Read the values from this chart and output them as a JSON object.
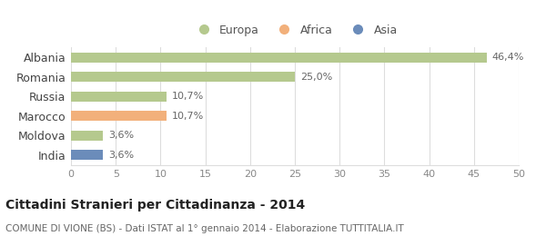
{
  "categories": [
    "Albania",
    "Romania",
    "Russia",
    "Marocco",
    "Moldova",
    "India"
  ],
  "values": [
    46.4,
    25.0,
    10.7,
    10.7,
    3.6,
    3.6
  ],
  "labels": [
    "46,4%",
    "25,0%",
    "10,7%",
    "10,7%",
    "3,6%",
    "3,6%"
  ],
  "bar_colors": [
    "#b5c98e",
    "#b5c98e",
    "#b5c98e",
    "#f2b07b",
    "#b5c98e",
    "#6b8cba"
  ],
  "legend_items": [
    {
      "label": "Europa",
      "color": "#b5c98e"
    },
    {
      "label": "Africa",
      "color": "#f2b07b"
    },
    {
      "label": "Asia",
      "color": "#6b8cba"
    }
  ],
  "xlim": [
    0,
    50
  ],
  "xticks": [
    0,
    5,
    10,
    15,
    20,
    25,
    30,
    35,
    40,
    45,
    50
  ],
  "title": "Cittadini Stranieri per Cittadinanza - 2014",
  "subtitle": "COMUNE DI VIONE (BS) - Dati ISTAT al 1° gennaio 2014 - Elaborazione TUTTITALIA.IT",
  "background_color": "#ffffff",
  "grid_color": "#dddddd",
  "bar_height": 0.5,
  "label_fontsize": 8,
  "ytick_fontsize": 9,
  "xtick_fontsize": 8,
  "title_fontsize": 10,
  "subtitle_fontsize": 7.5
}
